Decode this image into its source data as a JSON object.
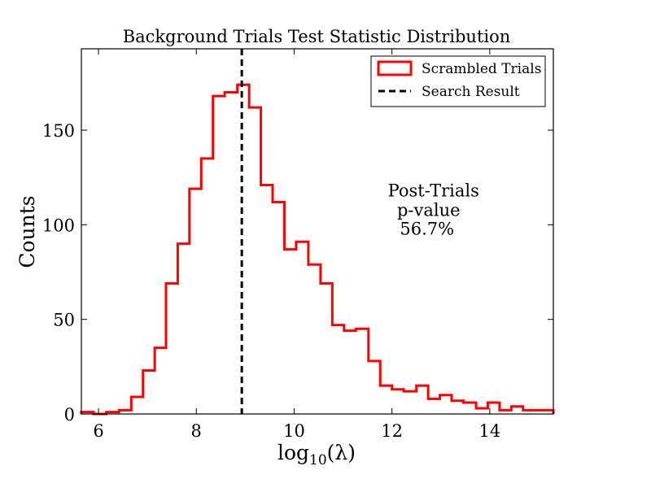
{
  "chart_data": {
    "type": "histogram",
    "title": "Background Trials Test Statistic Distribution",
    "xlabel": "log",
    "xlabel_sub": "10",
    "xlabel_arg": "(λ)",
    "ylabel": "Counts",
    "xlim": [
      5.65,
      15.3
    ],
    "ylim": [
      0,
      193
    ],
    "xticks": [
      6,
      8,
      10,
      12,
      14
    ],
    "yticks": [
      0,
      50,
      100,
      150
    ],
    "grid": false,
    "legend_position": "top-right",
    "series": [
      {
        "name": "Scrambled Trials",
        "style": "step",
        "color": "#ff0000",
        "bin_edges": [
          5.65,
          5.9,
          6.16,
          6.42,
          6.67,
          6.91,
          7.15,
          7.38,
          7.62,
          7.86,
          8.1,
          8.34,
          8.58,
          8.84,
          9.08,
          9.32,
          9.56,
          9.8,
          10.04,
          10.29,
          10.54,
          10.78,
          11.02,
          11.26,
          11.52,
          11.76,
          12.0,
          12.24,
          12.5,
          12.74,
          12.98,
          13.22,
          13.46,
          13.72,
          13.96,
          14.2,
          14.44,
          14.68,
          14.92,
          15.3
        ],
        "counts": [
          1,
          0,
          1,
          2,
          9,
          23,
          35,
          69,
          90,
          119,
          135,
          168,
          170,
          174,
          162,
          121,
          112,
          87,
          91,
          79,
          69,
          47,
          44,
          45,
          28,
          15,
          13,
          12,
          15,
          8,
          10,
          7,
          6,
          3,
          6,
          2,
          4,
          2,
          2
        ]
      },
      {
        "name": "Search Result",
        "style": "dashed-vline",
        "color": "#000000",
        "x": 8.93
      }
    ],
    "annotation": {
      "lines": [
        "Post-Trials",
        "p-value",
        "56.7%"
      ],
      "x": 12.85,
      "y": 115
    }
  }
}
